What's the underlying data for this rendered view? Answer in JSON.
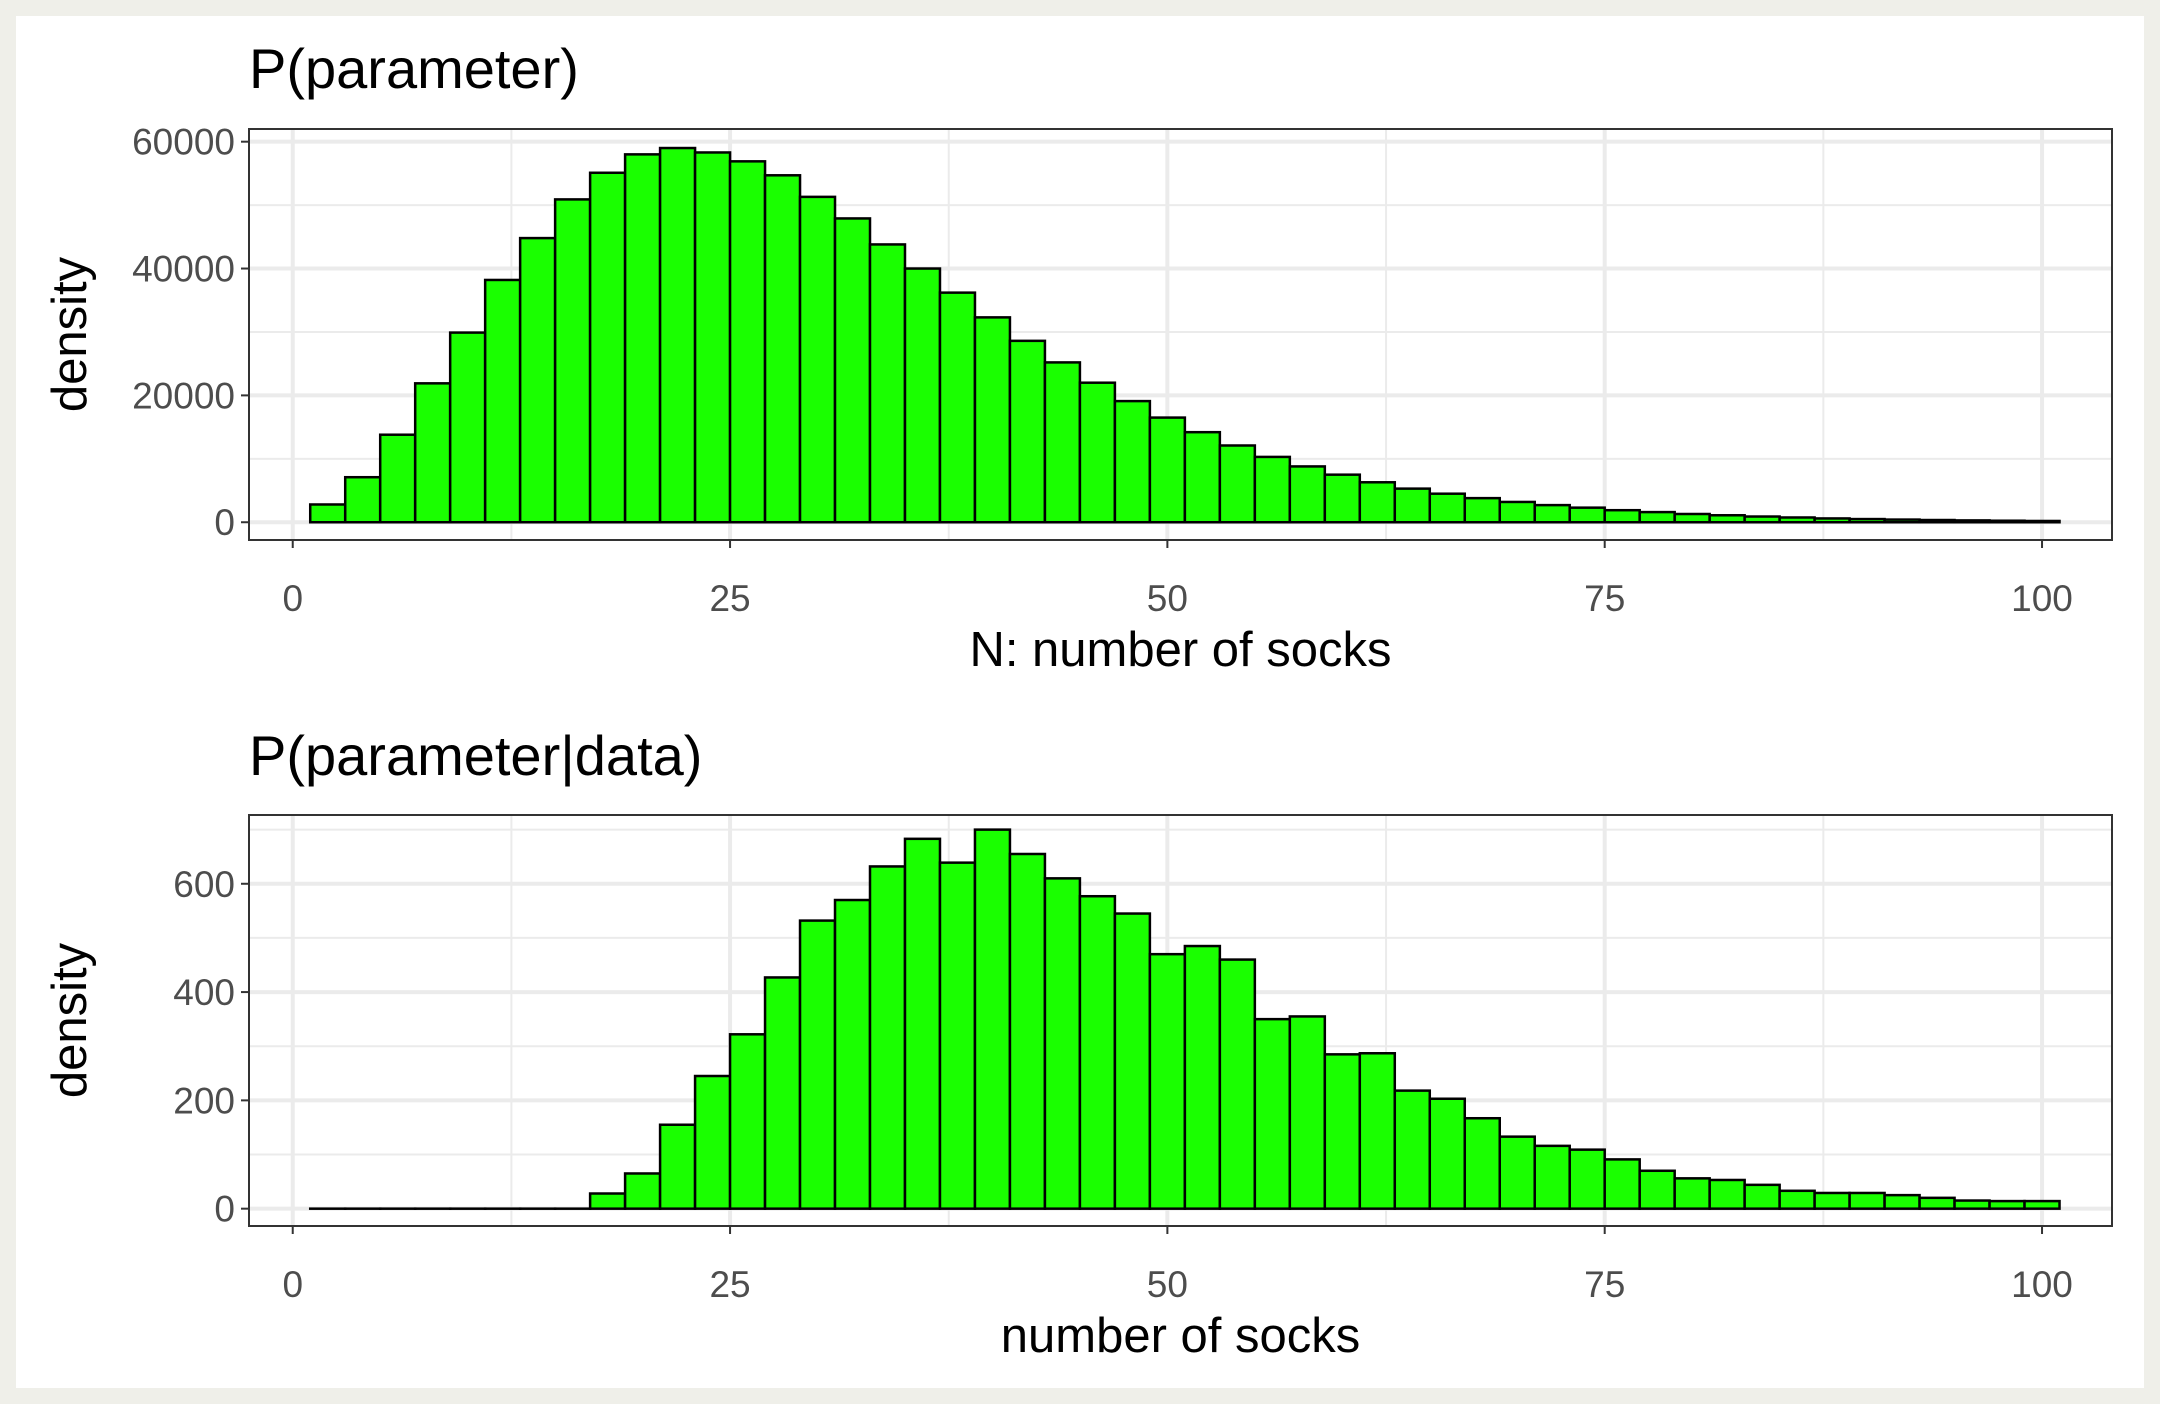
{
  "colors": {
    "bar_fill": "#1aff00",
    "bar_outline": "#000000"
  },
  "chart_data": [
    {
      "type": "bar",
      "title": "P(parameter)",
      "xlabel": "N: number of socks",
      "ylabel": "density",
      "xlim": [
        -2.5,
        104
      ],
      "ylim": [
        -2800,
        62000
      ],
      "x_ticks": [
        0,
        25,
        50,
        75,
        100
      ],
      "y_ticks": [
        0,
        20000,
        40000,
        60000
      ],
      "x_tick_labels": [
        "0",
        "25",
        "50",
        "75",
        "100"
      ],
      "y_tick_labels": [
        "0",
        "20000",
        "40000",
        "60000"
      ],
      "grid": true,
      "bin_width": 2,
      "bin_start": 1,
      "values": [
        2800,
        7100,
        13800,
        21900,
        29900,
        38200,
        44800,
        50900,
        55100,
        58000,
        59000,
        58300,
        56900,
        54700,
        51300,
        47900,
        43800,
        40000,
        36200,
        32300,
        28600,
        25200,
        22000,
        19100,
        16500,
        14200,
        12100,
        10300,
        8800,
        7500,
        6300,
        5300,
        4500,
        3800,
        3200,
        2700,
        2300,
        1900,
        1600,
        1300,
        1100,
        900,
        750,
        600,
        500,
        420,
        350,
        290,
        240,
        200
      ]
    },
    {
      "type": "bar",
      "title": "P(parameter|data)",
      "xlabel": "number of socks",
      "ylabel": "density",
      "xlim": [
        -2.5,
        104
      ],
      "ylim": [
        -32,
        727
      ],
      "x_ticks": [
        0,
        25,
        50,
        75,
        100
      ],
      "y_ticks": [
        0,
        200,
        400,
        600
      ],
      "x_tick_labels": [
        "0",
        "25",
        "50",
        "75",
        "100"
      ],
      "y_tick_labels": [
        "0",
        "200",
        "400",
        "600"
      ],
      "grid": true,
      "bin_width": 2,
      "bin_start": 1,
      "values": [
        0,
        0,
        0,
        0,
        0,
        0,
        0,
        0,
        28,
        65,
        155,
        245,
        322,
        427,
        532,
        570,
        632,
        683,
        639,
        700,
        655,
        610,
        577,
        545,
        470,
        485,
        460,
        350,
        355,
        285,
        287,
        218,
        203,
        167,
        133,
        116,
        109,
        91,
        70,
        56,
        53,
        44,
        33,
        29,
        29,
        25,
        20,
        15,
        14,
        14
      ]
    }
  ]
}
